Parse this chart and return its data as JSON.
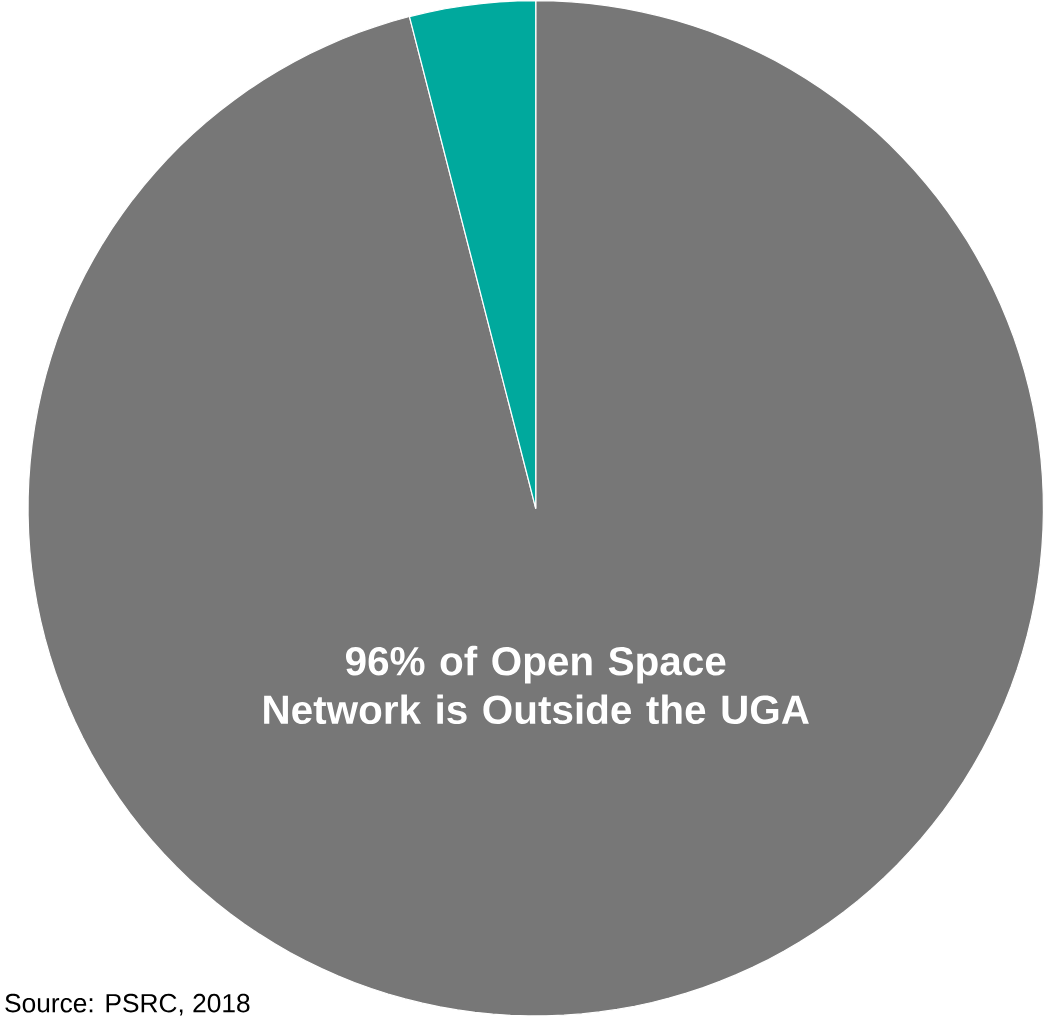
{
  "chart_data": {
    "type": "pie",
    "categories": [
      null,
      null
    ],
    "values": [
      96,
      4
    ],
    "colors": [
      "#777777",
      "#00a99d"
    ],
    "annotations": [
      "96% of Open Space Network is Outside the UGA",
      "Source: PSRC, 2018"
    ]
  }
}
